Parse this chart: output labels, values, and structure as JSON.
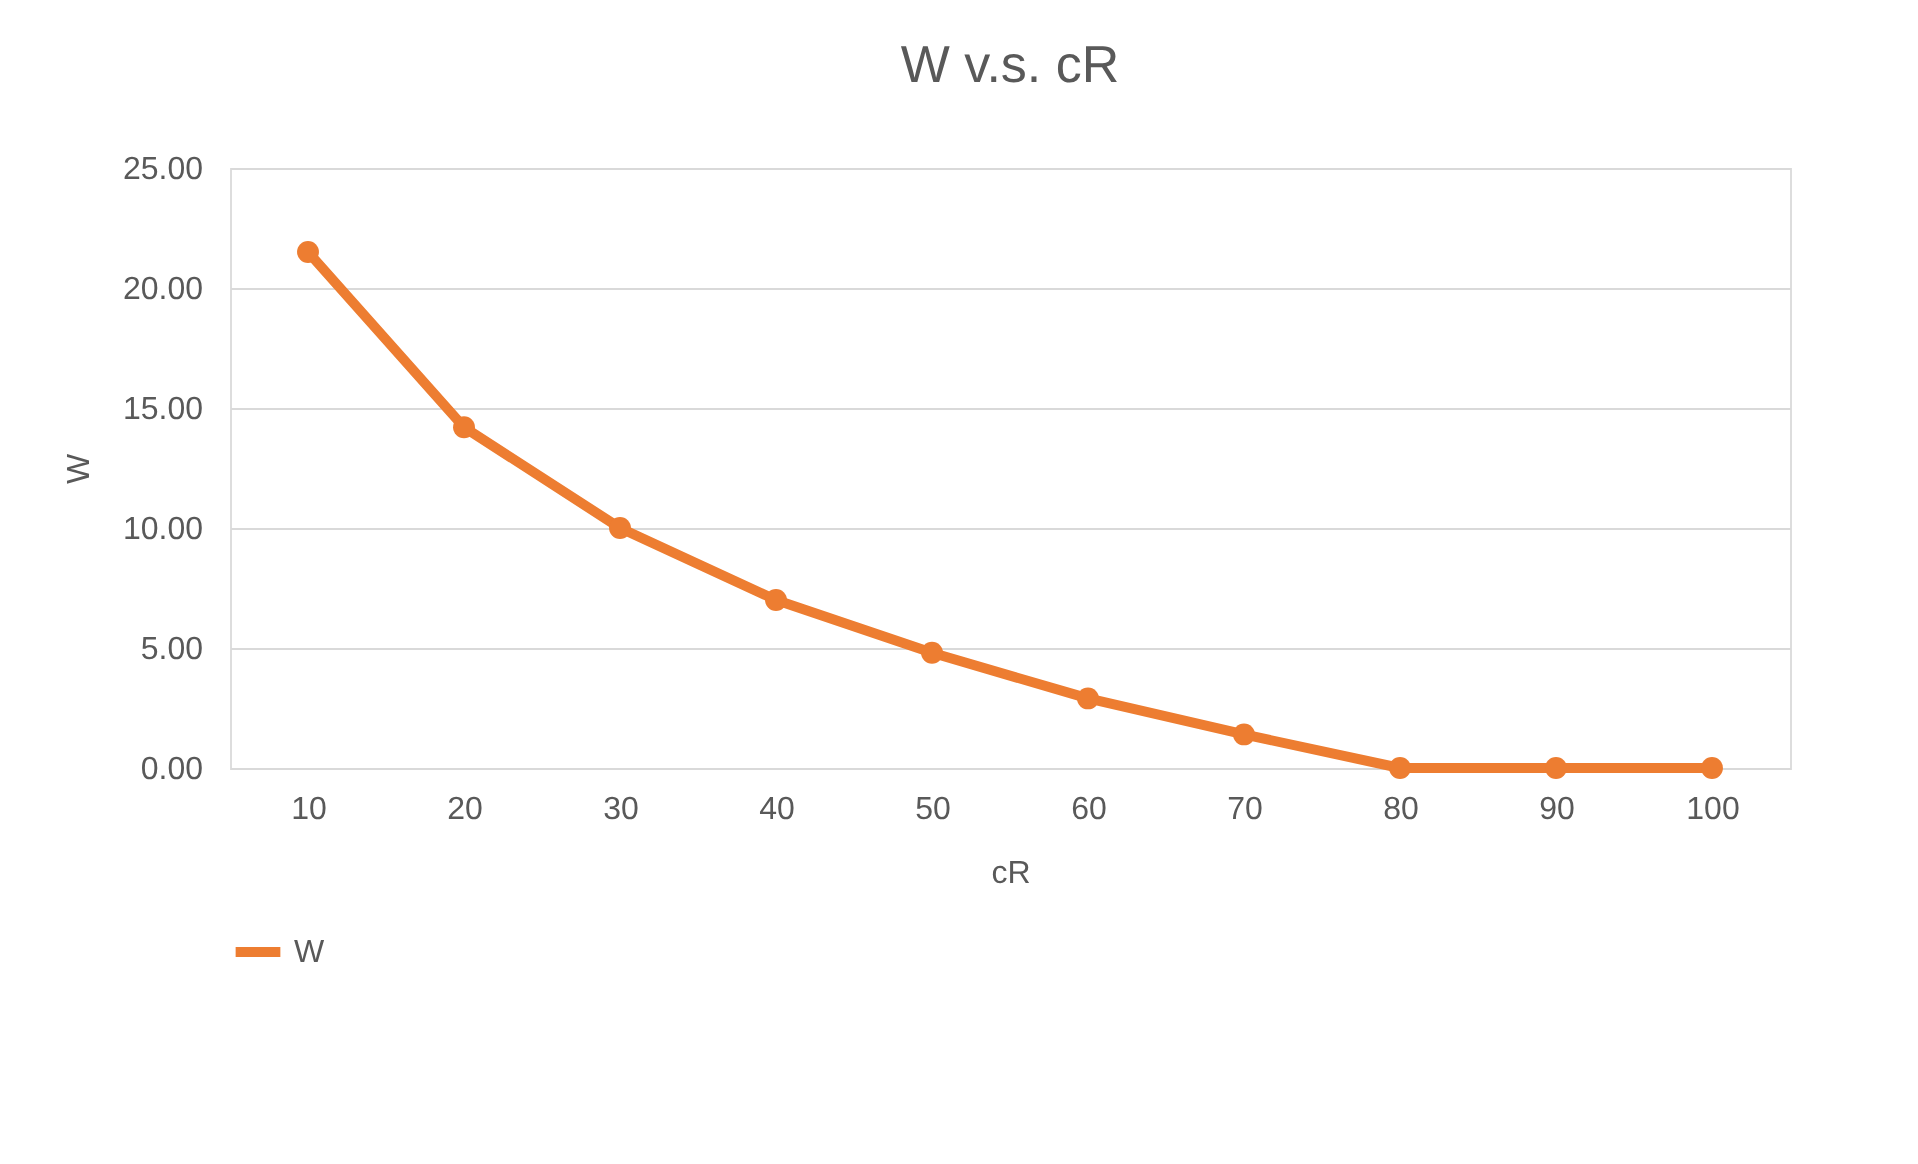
{
  "chart_data": {
    "type": "line",
    "title": "W v.s. cR",
    "xlabel": "cR",
    "ylabel": "W",
    "categories": [
      "10",
      "20",
      "30",
      "40",
      "50",
      "60",
      "70",
      "80",
      "90",
      "100"
    ],
    "series": [
      {
        "name": "W",
        "color": "#ed7d31",
        "values": [
          21.5,
          14.2,
          10.0,
          7.0,
          4.8,
          2.9,
          1.4,
          0.0,
          0.0,
          0.0
        ]
      }
    ],
    "ylim": [
      0,
      25
    ],
    "yticks": [
      {
        "value": 0,
        "label": "0.00"
      },
      {
        "value": 5,
        "label": "5.00"
      },
      {
        "value": 10,
        "label": "10.00"
      },
      {
        "value": 15,
        "label": "15.00"
      },
      {
        "value": 20,
        "label": "20.00"
      },
      {
        "value": 25,
        "label": "25.00"
      }
    ],
    "grid": "y",
    "legend": "bottom",
    "marker": "circle",
    "line_style": "solid"
  }
}
